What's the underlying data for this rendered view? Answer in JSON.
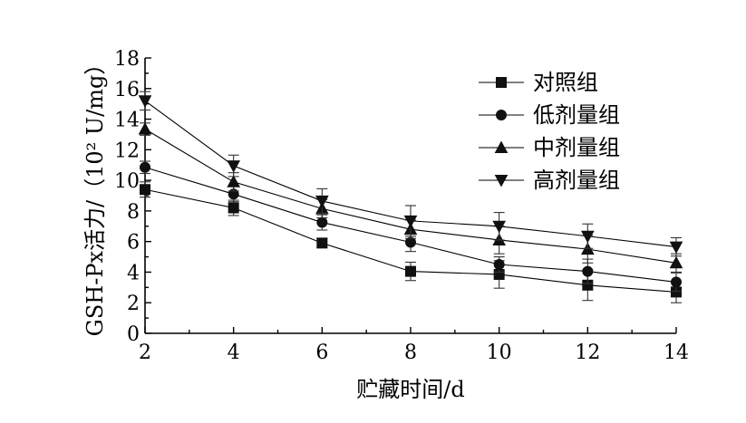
{
  "chart_data": {
    "type": "line",
    "xlabel": "贮藏时间/d",
    "ylabel": "GSH-Px活力/（10² U/mg）",
    "xlim": [
      2,
      14
    ],
    "ylim": [
      0,
      18
    ],
    "x_ticks": [
      "2",
      "4",
      "6",
      "8",
      "10",
      "12",
      "14"
    ],
    "y_ticks": [
      "0",
      "2",
      "4",
      "6",
      "8",
      "10",
      "12",
      "14",
      "16",
      "18"
    ],
    "legend_position": "top-right",
    "x": [
      2,
      4,
      6,
      8,
      10,
      12,
      14
    ],
    "series": [
      {
        "name": "对照组",
        "marker": "square",
        "values": [
          9.4,
          8.2,
          5.9,
          4.05,
          3.85,
          3.15,
          2.7
        ],
        "errors": [
          0.5,
          0.5,
          0.3,
          0.6,
          0.9,
          1.0,
          0.7
        ]
      },
      {
        "name": "低剂量组",
        "marker": "circle",
        "values": [
          10.85,
          9.1,
          7.25,
          5.95,
          4.5,
          4.05,
          3.35
        ],
        "errors": [
          0.4,
          0.5,
          0.5,
          0.6,
          0.5,
          0.8,
          0.6
        ]
      },
      {
        "name": "中剂量组",
        "marker": "triangle-up",
        "values": [
          13.35,
          9.9,
          8.15,
          6.8,
          6.1,
          5.5,
          4.6
        ],
        "errors": [
          0.4,
          0.6,
          0.6,
          0.6,
          0.9,
          0.9,
          0.6
        ]
      },
      {
        "name": "高剂量组",
        "marker": "triangle-down",
        "values": [
          15.2,
          10.95,
          8.65,
          7.35,
          7.0,
          6.35,
          5.65
        ],
        "errors": [
          0.6,
          0.7,
          0.8,
          1.0,
          0.9,
          0.8,
          0.6
        ]
      }
    ]
  }
}
